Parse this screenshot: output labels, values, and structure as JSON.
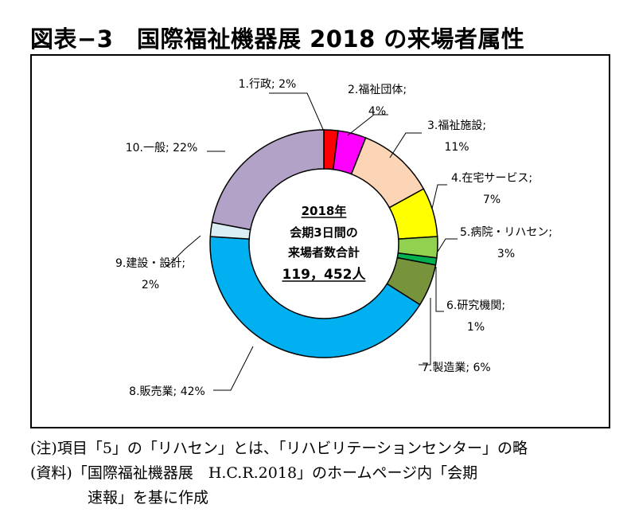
{
  "title": "図表−3　国際福祉機器展 2018 の来場者属性",
  "chart_data": {
    "type": "pie",
    "donut": true,
    "center_text": [
      "2018年",
      "会期3日間の",
      "来場者数合計",
      "119，452人"
    ],
    "slices": [
      {
        "name": "1.行政",
        "value": 2,
        "label": [
          "1.行政; 2%"
        ],
        "color": "#FF0000"
      },
      {
        "name": "2.福祉団体",
        "value": 4,
        "label": [
          "2.福祉団体;",
          "4%"
        ],
        "color": "#FF00FF"
      },
      {
        "name": "3.福祉施設",
        "value": 11,
        "label": [
          "3.福祉施設;",
          "11%"
        ],
        "color": "#FBD5B5"
      },
      {
        "name": "4.在宅サービス",
        "value": 7,
        "label": [
          "4.在宅サービス;",
          "7%"
        ],
        "color": "#FFFF00"
      },
      {
        "name": "5.病院・リハセン",
        "value": 3,
        "label": [
          "5.病院・リハセン;",
          "3%"
        ],
        "color": "#92D050"
      },
      {
        "name": "6.研究機関",
        "value": 1,
        "label": [
          "6.研究機関;",
          "1%"
        ],
        "color": "#00B050"
      },
      {
        "name": "7.製造業",
        "value": 6,
        "label": [
          "7.製造業; 6%"
        ],
        "color": "#77933C"
      },
      {
        "name": "8.販売業",
        "value": 42,
        "label": [
          "8.販売業; 42%"
        ],
        "color": "#00B0F0"
      },
      {
        "name": "9.建設・設計",
        "value": 2,
        "label": [
          "9.建設・設計;",
          "2%"
        ],
        "color": "#DAEEF3"
      },
      {
        "name": "10.一般",
        "value": 22,
        "label": [
          "10.一般; 22%"
        ],
        "color": "#B3A2C7"
      }
    ]
  },
  "notes": {
    "line1": "(注)項目「5」の「リハセン」とは、「リハビリテーションセンター」の略",
    "line2": "(資料)「国際福祉機器展　H.C.R.2018」のホームページ内「会期",
    "line3": "速報」を基に作成"
  }
}
